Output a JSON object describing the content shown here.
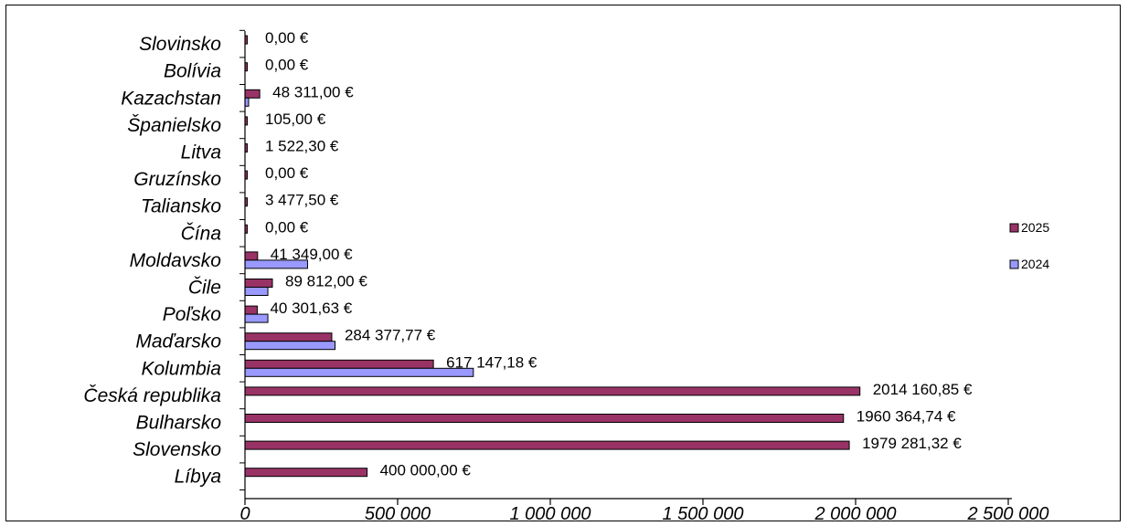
{
  "chart_data": {
    "type": "bar",
    "orientation": "horizontal",
    "categories": [
      "Slovinsko",
      "Bolívia",
      "Kazachstan",
      "Španielsko",
      "Litva",
      "Gruzínsko",
      "Taliansko",
      "Čína",
      "Moldavsko",
      "Čile",
      "Poľsko",
      "Maďarsko",
      "Kolumbia",
      "Česká republika",
      "Bulharsko",
      "Slovensko",
      "Líbya"
    ],
    "series": [
      {
        "name": "2025",
        "color": "#993366",
        "values": [
          0,
          0,
          48311.0,
          105.0,
          1522.3,
          0,
          3477.5,
          0,
          41349.0,
          89812.0,
          40301.63,
          284377.77,
          617147.18,
          2014160.85,
          1960364.74,
          1979281.32,
          400000.0
        ],
        "labels": [
          "0,00 €",
          "0,00 €",
          "48 311,00 €",
          "105,00 €",
          "1 522,30 €",
          "0,00 €",
          "3 477,50 €",
          "0,00 €",
          "41 349,00 €",
          "89 812,00 €",
          "40 301,63 €",
          "284 377,77 €",
          "617 147,18 €",
          "2014 160,85 €",
          "1960 364,74 €",
          "1979 281,32 €",
          "400 000,00 €"
        ]
      },
      {
        "name": "2024",
        "color": "#9999ff",
        "values": [
          0,
          0,
          12000,
          0,
          0,
          0,
          0,
          0,
          205000,
          75000,
          75000,
          295000,
          748000,
          0,
          0,
          0,
          0
        ]
      }
    ],
    "xlim": [
      0,
      2500000
    ],
    "xticks": [
      0,
      500000,
      1000000,
      1500000,
      2000000,
      2500000
    ],
    "xtick_labels": [
      "0",
      "500 000",
      "1 000 000",
      "1 500 000",
      "2 000 000",
      "2 500 000"
    ],
    "legend": [
      "2025",
      "2024"
    ],
    "legend_position": "right",
    "grid": false,
    "title": "",
    "xlabel": "",
    "ylabel": ""
  }
}
